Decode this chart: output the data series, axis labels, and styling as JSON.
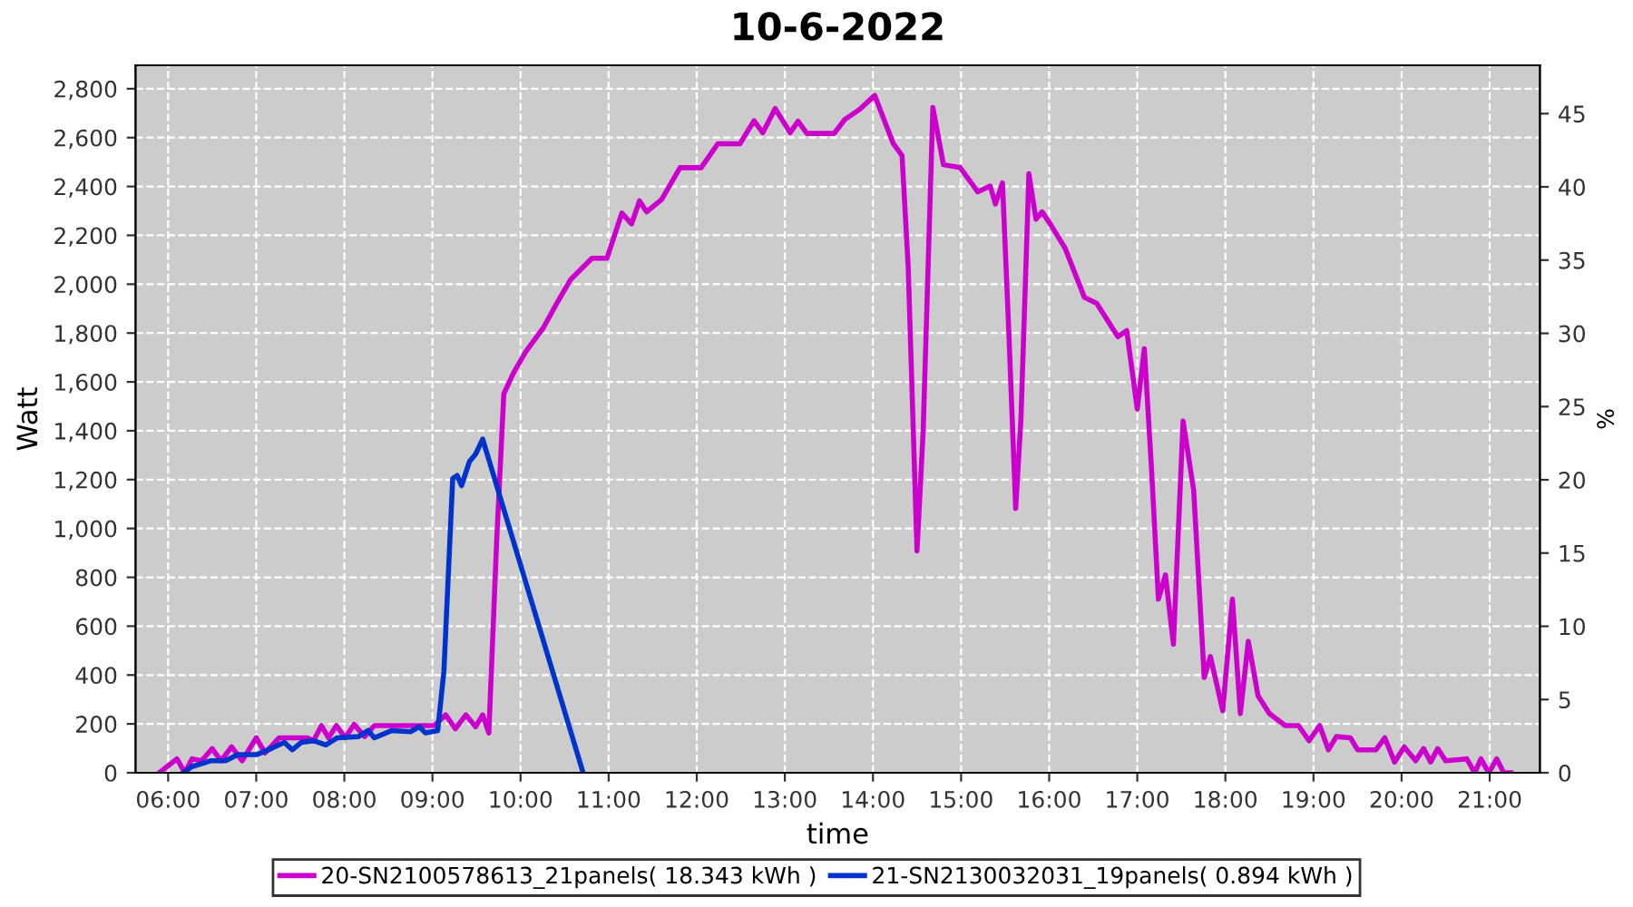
{
  "chart_data": {
    "type": "line",
    "title": "10-6-2022",
    "xlabel": "time",
    "ylabel": "Watt",
    "y2label": "%",
    "xlim": [
      5.63,
      21.57
    ],
    "xticks": [
      {
        "value": 6,
        "label": "06:00"
      },
      {
        "value": 7,
        "label": "07:00"
      },
      {
        "value": 8,
        "label": "08:00"
      },
      {
        "value": 9,
        "label": "09:00"
      },
      {
        "value": 10,
        "label": "10:00"
      },
      {
        "value": 11,
        "label": "11:00"
      },
      {
        "value": 12,
        "label": "12:00"
      },
      {
        "value": 13,
        "label": "13:00"
      },
      {
        "value": 14,
        "label": "14:00"
      },
      {
        "value": 15,
        "label": "15:00"
      },
      {
        "value": 16,
        "label": "16:00"
      },
      {
        "value": 17,
        "label": "17:00"
      },
      {
        "value": 18,
        "label": "18:00"
      },
      {
        "value": 19,
        "label": "19:00"
      },
      {
        "value": 20,
        "label": "20:00"
      },
      {
        "value": 21,
        "label": "21:00"
      }
    ],
    "ylim": [
      0,
      2896
    ],
    "yticks": [
      0,
      200,
      400,
      600,
      800,
      {
        "value": 1000,
        "label": "1,000"
      },
      {
        "value": 1200,
        "label": "1,200"
      },
      {
        "value": 1400,
        "label": "1,400"
      },
      {
        "value": 1600,
        "label": "1,600"
      },
      {
        "value": 1800,
        "label": "1,800"
      },
      {
        "value": 2000,
        "label": "2,000"
      },
      {
        "value": 2200,
        "label": "2,200"
      },
      {
        "value": 2400,
        "label": "2,400"
      },
      {
        "value": 2600,
        "label": "2,600"
      },
      {
        "value": 2800,
        "label": "2,800"
      }
    ],
    "y2lim": [
      0,
      48.3
    ],
    "y2ticks": [
      0,
      5,
      10,
      15,
      20,
      25,
      30,
      35,
      40,
      45
    ],
    "grid": true,
    "legend": "bottom",
    "marker": "none",
    "line_style": "solid",
    "series": [
      {
        "name": "20-SN2100578613_21panels( 18.343 kWh )",
        "color": "#cc00cc",
        "x": [
          5.9,
          6.1,
          6.19,
          6.27,
          6.38,
          6.5,
          6.6,
          6.72,
          6.84,
          7.0,
          7.1,
          7.26,
          7.58,
          7.65,
          7.74,
          7.82,
          7.91,
          8.01,
          8.11,
          8.23,
          8.34,
          9.02,
          9.15,
          9.26,
          9.38,
          9.49,
          9.57,
          9.64,
          9.73,
          9.81,
          9.92,
          10.06,
          10.26,
          10.41,
          10.57,
          10.81,
          10.98,
          11.15,
          11.26,
          11.35,
          11.43,
          11.6,
          11.81,
          12.05,
          12.24,
          12.49,
          12.65,
          12.75,
          12.89,
          13.06,
          13.15,
          13.25,
          13.56,
          13.68,
          13.85,
          14.02,
          14.23,
          14.33,
          14.4,
          14.5,
          14.57,
          14.68,
          14.8,
          14.99,
          15.19,
          15.33,
          15.39,
          15.47,
          15.54,
          15.62,
          15.68,
          15.77,
          15.85,
          15.92,
          16.02,
          16.18,
          16.4,
          16.54,
          16.78,
          16.88,
          17.0,
          17.08,
          17.16,
          17.24,
          17.32,
          17.41,
          17.52,
          17.64,
          17.76,
          17.83,
          17.97,
          18.08,
          18.17,
          18.26,
          18.37,
          18.5,
          18.68,
          18.83,
          18.95,
          19.07,
          19.17,
          19.26,
          19.42,
          19.5,
          19.71,
          19.81,
          19.92,
          20.03,
          20.16,
          20.25,
          20.33,
          20.41,
          20.5,
          20.74,
          20.83,
          20.9,
          20.99,
          21.08,
          21.16,
          21.24
        ],
        "values": [
          0,
          57,
          0,
          57,
          49,
          99,
          49,
          106,
          49,
          143,
          81,
          143,
          143,
          131,
          193,
          143,
          193,
          143,
          198,
          148,
          193,
          193,
          237,
          180,
          237,
          188,
          237,
          163,
          958,
          1551,
          1637,
          1724,
          1822,
          1921,
          2020,
          2106,
          2106,
          2291,
          2247,
          2341,
          2296,
          2346,
          2477,
          2477,
          2575,
          2575,
          2669,
          2620,
          2719,
          2620,
          2667,
          2617,
          2617,
          2674,
          2716,
          2773,
          2576,
          2526,
          2070,
          908,
          1402,
          2723,
          2489,
          2477,
          2378,
          2402,
          2328,
          2415,
          1822,
          1082,
          1452,
          2452,
          2266,
          2296,
          2242,
          2148,
          1946,
          1921,
          1785,
          1810,
          1489,
          1736,
          1254,
          711,
          810,
          526,
          1440,
          1156,
          390,
          476,
          254,
          711,
          242,
          538,
          316,
          242,
          193,
          193,
          131,
          193,
          94,
          148,
          143,
          94,
          94,
          143,
          44,
          106,
          49,
          99,
          44,
          99,
          49,
          57,
          0,
          57,
          0,
          57,
          0,
          0
        ]
      },
      {
        "name": "21-SN2130032031_19panels( 0.894 kWh )",
        "color": "#0033cc",
        "x": [
          6.17,
          6.27,
          6.48,
          6.65,
          6.79,
          7.0,
          7.17,
          7.32,
          7.41,
          7.51,
          7.65,
          7.79,
          7.92,
          8.16,
          8.27,
          8.34,
          8.54,
          8.75,
          8.85,
          8.92,
          9.06,
          9.13,
          9.23,
          9.28,
          9.33,
          9.42,
          9.49,
          9.57,
          10.71
        ],
        "values": [
          0,
          25,
          49,
          49,
          74,
          74,
          99,
          124,
          94,
          124,
          131,
          114,
          143,
          148,
          173,
          143,
          173,
          168,
          188,
          163,
          173,
          415,
          1205,
          1217,
          1175,
          1274,
          1304,
          1366,
          0
        ]
      }
    ]
  }
}
